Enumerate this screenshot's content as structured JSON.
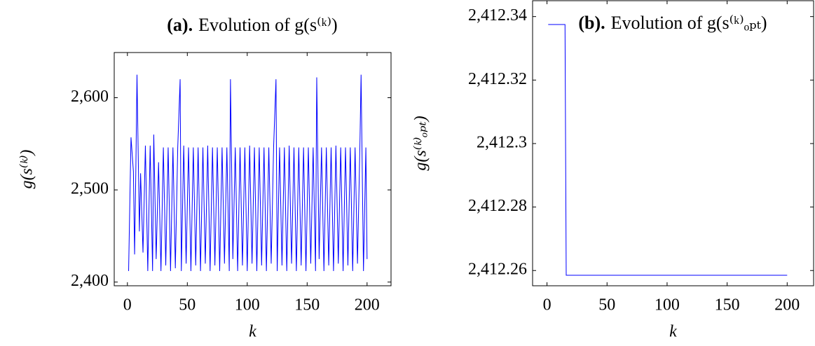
{
  "chart_data": [
    {
      "type": "line",
      "title_number": "(a).",
      "title": "Evolution of g(s⁽ᵏ⁾)",
      "xlabel": "k",
      "ylabel": "g(s⁽ᵏ⁾)",
      "xlim": [
        -11,
        220
      ],
      "ylim": [
        2396,
        2649
      ],
      "xticks": [
        0,
        50,
        100,
        150,
        200
      ],
      "yticks": [
        {
          "value": 2400,
          "label": "2,400"
        },
        {
          "value": 2500,
          "label": "2,500"
        },
        {
          "value": 2600,
          "label": "2,600"
        }
      ],
      "series": [
        {
          "color": "#0000ff",
          "x": [
            1,
            3,
            5,
            6,
            7,
            8,
            10,
            11,
            13,
            15,
            17,
            19,
            21,
            22,
            24,
            26,
            28,
            30,
            32,
            34,
            36,
            38,
            40,
            42,
            44,
            45,
            47,
            49,
            51,
            53,
            55,
            57,
            59,
            61,
            63,
            65,
            67,
            69,
            71,
            73,
            75,
            77,
            79,
            81,
            83,
            85,
            86,
            88,
            90,
            92,
            94,
            96,
            98,
            100,
            102,
            104,
            106,
            108,
            110,
            112,
            114,
            116,
            118,
            120,
            122,
            124,
            125,
            127,
            129,
            131,
            133,
            135,
            137,
            139,
            141,
            143,
            145,
            147,
            149,
            151,
            153,
            155,
            157,
            158,
            160,
            162,
            164,
            166,
            168,
            170,
            172,
            174,
            176,
            178,
            180,
            182,
            184,
            186,
            188,
            190,
            192,
            194,
            195,
            197,
            199,
            200
          ],
          "values": [
            2412,
            2557,
            2520,
            2430,
            2518,
            2625,
            2455,
            2518,
            2432,
            2548,
            2412,
            2548,
            2412,
            2560,
            2425,
            2530,
            2412,
            2546,
            2418,
            2546,
            2412,
            2546,
            2415,
            2546,
            2620,
            2412,
            2548,
            2420,
            2546,
            2412,
            2546,
            2418,
            2546,
            2412,
            2546,
            2420,
            2548,
            2412,
            2546,
            2418,
            2546,
            2412,
            2546,
            2420,
            2546,
            2412,
            2620,
            2425,
            2546,
            2412,
            2546,
            2418,
            2546,
            2412,
            2548,
            2420,
            2546,
            2412,
            2546,
            2418,
            2546,
            2412,
            2546,
            2420,
            2546,
            2620,
            2412,
            2546,
            2418,
            2546,
            2412,
            2548,
            2420,
            2546,
            2412,
            2546,
            2418,
            2546,
            2412,
            2546,
            2420,
            2546,
            2412,
            2622,
            2425,
            2546,
            2412,
            2546,
            2418,
            2546,
            2412,
            2548,
            2420,
            2546,
            2412,
            2546,
            2418,
            2546,
            2412,
            2546,
            2420,
            2546,
            2625,
            2412,
            2546,
            2425
          ]
        }
      ]
    },
    {
      "type": "line",
      "title_number": "(b).",
      "title": "Evolution of g(s⁽ᵏ⁾ₒₚₜ)",
      "xlabel": "k",
      "ylabel": "g(s⁽ᵏ⁾ₒₚₜ)",
      "xlim": [
        -12,
        222
      ],
      "ylim": [
        2412.2552,
        2412.345
      ],
      "xticks": [
        0,
        50,
        100,
        150,
        200
      ],
      "yticks": [
        {
          "value": 2412.26,
          "label": "2,412.26"
        },
        {
          "value": 2412.28,
          "label": "2,412.28"
        },
        {
          "value": 2412.3,
          "label": "2,412.3"
        },
        {
          "value": 2412.32,
          "label": "2,412.32"
        },
        {
          "value": 2412.34,
          "label": "2,412.34"
        }
      ],
      "series": [
        {
          "color": "#0000ff",
          "x": [
            1,
            15,
            16,
            200
          ],
          "values": [
            2412.3375,
            2412.3375,
            2412.2585,
            2412.2585
          ]
        }
      ]
    }
  ]
}
